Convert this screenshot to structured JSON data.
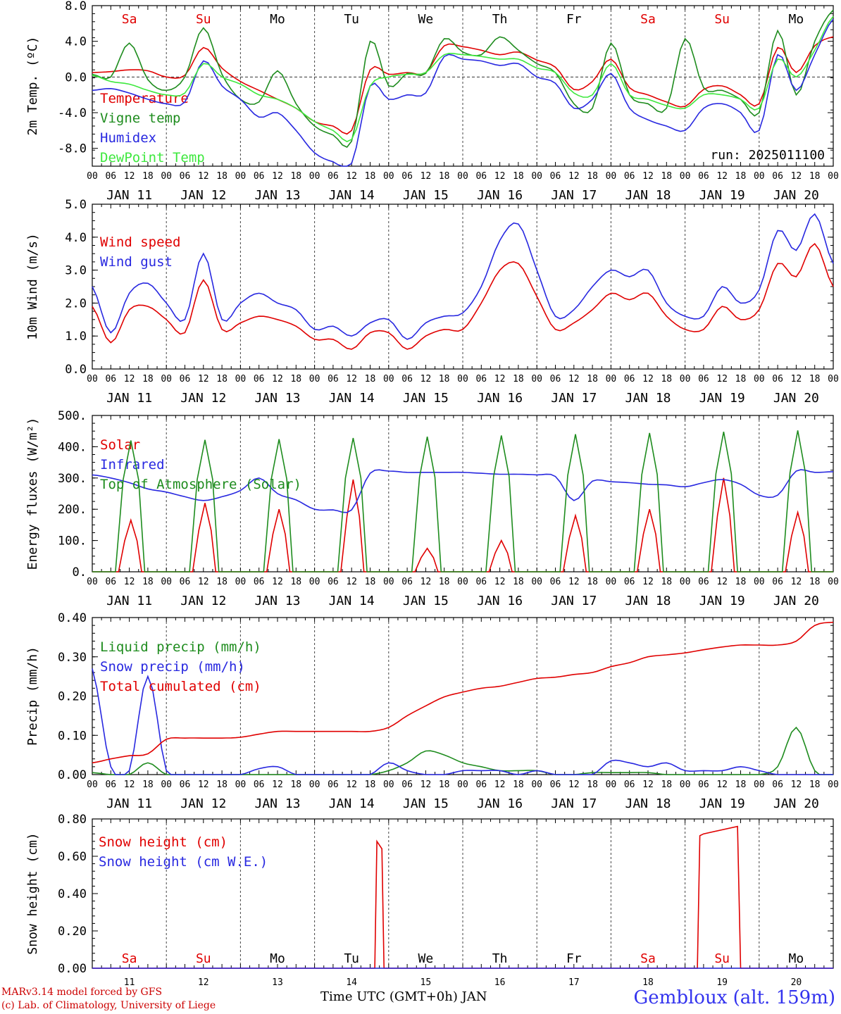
{
  "chart_data": [
    {
      "type": "line",
      "ylabel": "2m Temp. (ºC)",
      "ylim": [
        -10,
        8
      ],
      "yticks": [
        "8.0",
        "4.0",
        "0.0",
        "-4.0",
        "-8.0"
      ],
      "ytick_values": [
        8,
        4,
        0,
        -4,
        -8
      ],
      "zero_line": true,
      "weekdays": [
        "Sa",
        "Su",
        "Mo",
        "Tu",
        "We",
        "Th",
        "Fr",
        "Sa",
        "Su",
        "Mo"
      ],
      "weekend_color": "#e00000",
      "annotation": "run: 2025011100",
      "x_hours": [
        0,
        6,
        12,
        18,
        24,
        30,
        36,
        42,
        48,
        54,
        60,
        66,
        72,
        78,
        84,
        90,
        96,
        102,
        108,
        114,
        120,
        126,
        132,
        138,
        144,
        150,
        156,
        162,
        168,
        174,
        180,
        186,
        192,
        198,
        204,
        210,
        216,
        222,
        228,
        234,
        240
      ],
      "series": [
        {
          "name": "Temperature",
          "color": "#e00000",
          "values": [
            0.5,
            0.6,
            0.8,
            0.7,
            0.0,
            0.2,
            3.3,
            1.0,
            -0.5,
            -1.5,
            -2.5,
            -3.5,
            -5.0,
            -5.5,
            -6.0,
            0.8,
            0.3,
            0.5,
            0.5,
            3.5,
            3.4,
            3.0,
            2.5,
            2.8,
            1.9,
            1.1,
            -1.4,
            -0.5,
            2.0,
            -1.2,
            -2.0,
            -2.8,
            -3.3,
            -1.4,
            -1.0,
            -2.0,
            -3.0,
            3.3,
            0.5,
            3.5,
            4.5
          ]
        },
        {
          "name": "Vigne temp",
          "color": "#1e8c1e",
          "values": [
            0.3,
            0.0,
            3.8,
            -0.3,
            -1.5,
            0.0,
            5.5,
            0.3,
            -2.5,
            -2.8,
            0.7,
            -3.0,
            -5.5,
            -6.5,
            -7.2,
            4.0,
            -1.0,
            0.4,
            0.4,
            4.3,
            2.8,
            2.5,
            4.5,
            3.0,
            1.5,
            0.5,
            -3.0,
            -3.5,
            3.8,
            -2.0,
            -3.0,
            -3.5,
            4.3,
            -1.2,
            -1.5,
            -2.5,
            -4.0,
            5.2,
            -2.0,
            4.0,
            7.5
          ]
        },
        {
          "name": "Humidex",
          "color": "#2828e0",
          "values": [
            -1.5,
            -1.3,
            -1.8,
            -2.5,
            -3.0,
            -2.8,
            1.8,
            -1.0,
            -2.5,
            -4.5,
            -4.0,
            -6.0,
            -8.5,
            -9.5,
            -9.7,
            -1.0,
            -2.5,
            -2.0,
            -1.8,
            2.3,
            2.0,
            1.8,
            1.3,
            1.5,
            0.0,
            -0.7,
            -3.5,
            -2.5,
            0.4,
            -3.5,
            -4.8,
            -5.5,
            -6.0,
            -3.5,
            -3.0,
            -4.0,
            -6.0,
            2.5,
            -1.5,
            2.5,
            6.5
          ]
        },
        {
          "name": "DewPoint Temp",
          "color": "#3ee83e",
          "values": [
            0.2,
            -0.5,
            -0.8,
            -1.5,
            -2.0,
            -1.8,
            1.5,
            0.0,
            -0.8,
            -2.0,
            -2.5,
            -3.5,
            -5.0,
            -6.0,
            -7.0,
            -1.0,
            0.0,
            0.3,
            0.5,
            2.5,
            2.5,
            2.3,
            2.0,
            2.0,
            1.0,
            0.5,
            -1.8,
            -2.0,
            1.5,
            -2.0,
            -2.5,
            -3.2,
            -3.5,
            -2.0,
            -2.0,
            -2.5,
            -3.5,
            2.0,
            0.0,
            3.0,
            6.8
          ]
        }
      ]
    },
    {
      "type": "line",
      "ylabel": "10m Wind (m/s)",
      "ylim": [
        0,
        5
      ],
      "yticks": [
        "5.0",
        "4.0",
        "3.0",
        "2.0",
        "1.0",
        "0.0"
      ],
      "ytick_values": [
        5,
        4,
        3,
        2,
        1,
        0
      ],
      "x_hours": [
        0,
        6,
        12,
        18,
        24,
        30,
        36,
        42,
        48,
        54,
        60,
        66,
        72,
        78,
        84,
        90,
        96,
        102,
        108,
        114,
        120,
        126,
        132,
        138,
        144,
        150,
        156,
        162,
        168,
        174,
        180,
        186,
        192,
        198,
        204,
        210,
        216,
        222,
        228,
        234,
        240
      ],
      "series": [
        {
          "name": "Wind speed",
          "color": "#e00000",
          "values": [
            1.9,
            0.8,
            1.8,
            1.9,
            1.5,
            1.1,
            2.7,
            1.2,
            1.4,
            1.6,
            1.5,
            1.3,
            0.9,
            0.9,
            0.6,
            1.1,
            1.1,
            0.6,
            1.0,
            1.2,
            1.2,
            2.0,
            3.0,
            3.2,
            2.2,
            1.2,
            1.4,
            1.8,
            2.3,
            2.1,
            2.3,
            1.6,
            1.2,
            1.2,
            1.9,
            1.5,
            1.8,
            3.2,
            2.8,
            3.8,
            2.5
          ]
        },
        {
          "name": "Wind gust",
          "color": "#2828e0",
          "values": [
            2.5,
            1.1,
            2.3,
            2.6,
            2.0,
            1.5,
            3.5,
            1.5,
            2.0,
            2.3,
            2.0,
            1.8,
            1.2,
            1.3,
            1.0,
            1.4,
            1.5,
            0.9,
            1.4,
            1.6,
            1.7,
            2.5,
            3.9,
            4.4,
            3.0,
            1.6,
            1.8,
            2.5,
            3.0,
            2.8,
            3.0,
            2.0,
            1.6,
            1.6,
            2.5,
            2.0,
            2.4,
            4.2,
            3.6,
            4.7,
            3.2
          ]
        }
      ]
    },
    {
      "type": "line",
      "ylabel": "Energy fluxes (W/m²)",
      "ylim": [
        0,
        500
      ],
      "yticks": [
        "500.",
        "400.",
        "300.",
        "200.",
        "100.",
        "0."
      ],
      "ytick_values": [
        500,
        400,
        300,
        200,
        100,
        0
      ],
      "series": [
        {
          "name": "Solar",
          "color": "#e00000",
          "day_peaks": [
            165,
            220,
            200,
            295,
            75,
            100,
            180,
            200,
            300,
            190
          ]
        },
        {
          "name": "Infrared",
          "color": "#2828e0",
          "x_hours": [
            0,
            6,
            12,
            18,
            24,
            30,
            36,
            42,
            48,
            54,
            60,
            66,
            72,
            78,
            84,
            90,
            96,
            102,
            108,
            114,
            120,
            126,
            132,
            138,
            144,
            150,
            156,
            162,
            168,
            174,
            180,
            186,
            192,
            198,
            204,
            210,
            216,
            222,
            228,
            234,
            240
          ],
          "values": [
            310,
            300,
            285,
            265,
            255,
            240,
            228,
            240,
            260,
            300,
            250,
            230,
            200,
            198,
            198,
            315,
            322,
            318,
            318,
            318,
            318,
            315,
            312,
            312,
            310,
            305,
            228,
            290,
            288,
            285,
            280,
            278,
            272,
            285,
            295,
            280,
            245,
            245,
            322,
            318,
            320
          ]
        },
        {
          "name": "Top of Atmosphere (Solar)",
          "color": "#1e8c1e",
          "day_peaks": [
            420,
            422,
            424,
            428,
            432,
            436,
            440,
            444,
            448,
            452
          ]
        }
      ]
    },
    {
      "type": "line",
      "ylabel": "Precip (mm/h)",
      "ylim": [
        0,
        0.4
      ],
      "yticks": [
        "0.40",
        "0.30",
        "0.20",
        "0.10",
        "0.00"
      ],
      "ytick_values": [
        0.4,
        0.3,
        0.2,
        0.1,
        0.0
      ],
      "x_hours": [
        0,
        6,
        12,
        18,
        24,
        30,
        36,
        42,
        48,
        54,
        60,
        66,
        72,
        78,
        84,
        90,
        96,
        102,
        108,
        114,
        120,
        126,
        132,
        138,
        144,
        150,
        156,
        162,
        168,
        174,
        180,
        186,
        192,
        198,
        204,
        210,
        216,
        222,
        228,
        234,
        240
      ],
      "series": [
        {
          "name": "Liquid precip (mm/h)",
          "color": "#1e8c1e",
          "values": [
            0.005,
            0.0,
            0.0,
            0.03,
            0.0,
            0.0,
            0.0,
            0.0,
            0.0,
            0.0,
            0.0,
            0.0,
            0.0,
            0.0,
            0.0,
            0.0,
            0.01,
            0.03,
            0.06,
            0.05,
            0.03,
            0.02,
            0.01,
            0.01,
            0.01,
            0.0,
            0.0,
            0.005,
            0.005,
            0.005,
            0.005,
            0.0,
            0.0,
            0.0,
            0.0,
            0.0,
            0.0,
            0.02,
            0.12,
            0.01,
            0.0
          ]
        },
        {
          "name": "Snow precip (mm/h)",
          "color": "#2828e0",
          "values": [
            0.27,
            0.02,
            0.01,
            0.25,
            0.01,
            0.0,
            0.0,
            0.0,
            0.0,
            0.015,
            0.02,
            0.0,
            0.0,
            0.0,
            0.0,
            0.0,
            0.03,
            0.01,
            0.0,
            0.0,
            0.01,
            0.01,
            0.01,
            0.0,
            0.01,
            0.0,
            0.0,
            0.0,
            0.035,
            0.03,
            0.02,
            0.03,
            0.01,
            0.01,
            0.01,
            0.02,
            0.01,
            0.0,
            0.0,
            0.0,
            0.0
          ]
        },
        {
          "name": "Total cumulated (cm)",
          "color": "#e00000",
          "values": [
            0.03,
            0.04,
            0.048,
            0.053,
            0.09,
            0.093,
            0.093,
            0.093,
            0.095,
            0.103,
            0.11,
            0.11,
            0.11,
            0.11,
            0.11,
            0.11,
            0.12,
            0.15,
            0.175,
            0.198,
            0.21,
            0.22,
            0.225,
            0.235,
            0.245,
            0.248,
            0.255,
            0.26,
            0.275,
            0.285,
            0.3,
            0.305,
            0.31,
            0.318,
            0.325,
            0.33,
            0.33,
            0.33,
            0.34,
            0.38,
            0.388
          ]
        }
      ]
    },
    {
      "type": "line",
      "ylabel": "Snow height (cm)",
      "ylim": [
        0,
        0.8
      ],
      "yticks": [
        "0.80",
        "0.60",
        "0.40",
        "0.20",
        "0.00"
      ],
      "ytick_values": [
        0.8,
        0.6,
        0.4,
        0.2,
        0.0
      ],
      "weekdays": [
        "Sa",
        "Su",
        "Mo",
        "Tu",
        "We",
        "Th",
        "Fr",
        "Sa",
        "Su",
        "Mo"
      ],
      "series": [
        {
          "name": "Snow height (cm)",
          "color": "#e00000",
          "x_hours": [
            0,
            91.5,
            92.2,
            93.8,
            94.5,
            196,
            196.8,
            198,
            209,
            210,
            240
          ],
          "values": [
            0,
            0,
            0.68,
            0.64,
            0,
            0,
            0.71,
            0.72,
            0.76,
            0,
            0
          ]
        },
        {
          "name": "Snow height (cm W.E.)",
          "color": "#2828e0",
          "x_hours": [
            0,
            240
          ],
          "values": [
            0,
            0
          ]
        }
      ]
    }
  ],
  "x_axis": {
    "hour_labels": [
      "00",
      "06",
      "12",
      "18"
    ],
    "end_label": "00",
    "day_labels": [
      "JAN 11",
      "JAN 12",
      "JAN 13",
      "JAN 14",
      "JAN 15",
      "JAN 16",
      "JAN 17",
      "JAN 18",
      "JAN 19",
      "JAN 20"
    ],
    "day_numbers": [
      "11",
      "12",
      "13",
      "14",
      "15",
      "16",
      "17",
      "18",
      "19",
      "20"
    ],
    "title": "Time UTC (GMT+0h) JAN"
  },
  "footer": {
    "credit_line1": "MARv3.14 model forced by GFS",
    "credit_line2": "(c) Lab. of Climatology, University of Liege",
    "location": "Gembloux (alt. 159m)"
  }
}
